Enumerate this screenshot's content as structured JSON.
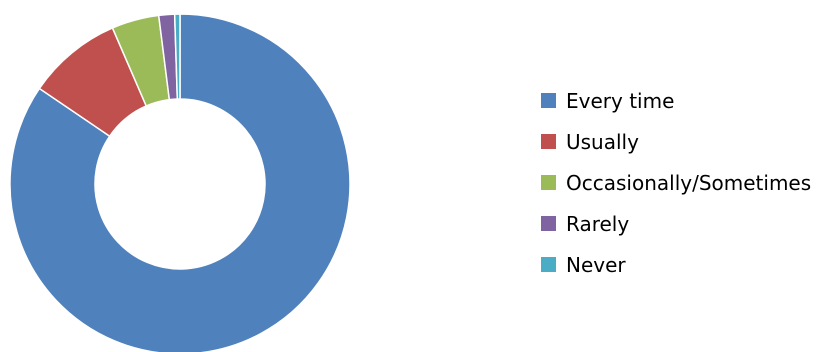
{
  "chart_data": {
    "type": "pie",
    "variant": "donut",
    "legend_position": "right",
    "slices": [
      {
        "label": "Every time",
        "value": 84.5,
        "color": "#4F81BD"
      },
      {
        "label": "Usually",
        "value": 9.0,
        "color": "#C0504D"
      },
      {
        "label": "Occasionally/Sometimes",
        "value": 4.5,
        "color": "#9BBB59"
      },
      {
        "label": "Rarely",
        "value": 1.5,
        "color": "#8064A2"
      },
      {
        "label": "Never",
        "value": 0.5,
        "color": "#4BACC6"
      }
    ]
  }
}
